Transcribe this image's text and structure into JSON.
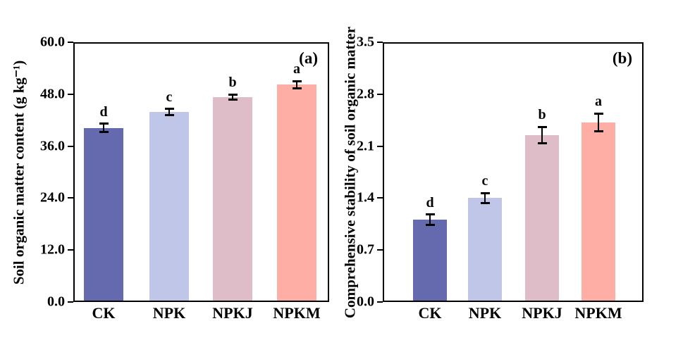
{
  "figure": {
    "background": "#ffffff",
    "text_color": "#000000"
  },
  "chart_data": [
    {
      "type": "bar",
      "panel_label": "(a)",
      "title": "",
      "xlabel": "",
      "ylabel": "Soil organic matter content (g kg⁻¹)",
      "categories": [
        "CK",
        "NPK",
        "NPKJ",
        "NPKM"
      ],
      "values": [
        40.2,
        43.9,
        47.3,
        50.2
      ],
      "errors": [
        1.0,
        0.7,
        0.6,
        0.8
      ],
      "sig_letters": [
        "d",
        "c",
        "b",
        "a"
      ],
      "ylim": [
        0,
        60
      ],
      "yticks": [
        0,
        12,
        24,
        36,
        48,
        60
      ],
      "ytick_labels": [
        "0.0",
        "12.0",
        "24.0",
        "36.0",
        "48.0",
        "60.0"
      ],
      "bar_colors": [
        "#6569ae",
        "#c0c6e8",
        "#debcc8",
        "#ffaea6"
      ],
      "grid": false,
      "legend": "none"
    },
    {
      "type": "bar",
      "panel_label": "(b)",
      "title": "",
      "xlabel": "",
      "ylabel": "Comprehensive stability of soil organic matter",
      "categories": [
        "CK",
        "NPK",
        "NPKJ",
        "NPKM"
      ],
      "values": [
        1.11,
        1.4,
        2.25,
        2.42
      ],
      "errors": [
        0.07,
        0.07,
        0.11,
        0.12
      ],
      "sig_letters": [
        "d",
        "c",
        "b",
        "a"
      ],
      "ylim": [
        0,
        3.5
      ],
      "yticks": [
        0,
        0.7,
        1.4,
        2.1,
        2.8,
        3.5
      ],
      "ytick_labels": [
        "0.0",
        "0.7",
        "1.4",
        "2.1",
        "2.8",
        "3.5"
      ],
      "bar_colors": [
        "#6569ae",
        "#c0c6e8",
        "#debcc8",
        "#ffaea6"
      ],
      "grid": false,
      "legend": "none"
    }
  ]
}
